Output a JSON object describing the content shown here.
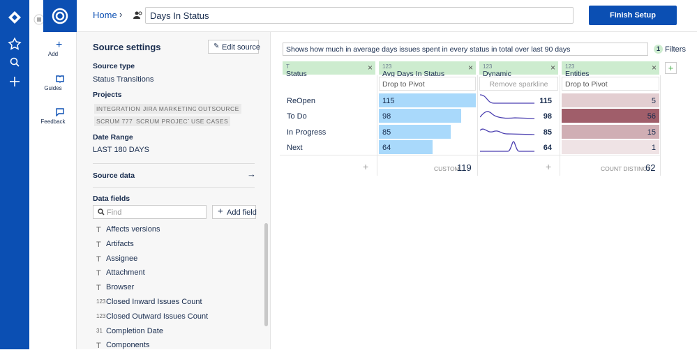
{
  "sidebar": {
    "add": "Add",
    "guides": "Guides",
    "feedback": "Feedback"
  },
  "header": {
    "breadcrumb": "Home",
    "title": "Days In Status",
    "button": "Finish Setup"
  },
  "source_settings": {
    "title": "Source settings",
    "edit": "Edit source",
    "source_type_label": "Source type",
    "source_type": "Status Transitions",
    "projects_label": "Projects",
    "projects": [
      "INTEGRATION",
      "JIRA MARKETING",
      "OUTSOURCE",
      "SCRUM 777",
      "SCRUM PROJECT",
      "USE CASES"
    ],
    "date_range_label": "Date Range",
    "date_range": "LAST 180 DAYS",
    "source_data": "Source data",
    "data_fields_label": "Data fields",
    "find_placeholder": "Find",
    "add_field": "Add field",
    "fields": [
      {
        "icon": "T",
        "name": "Affects versions"
      },
      {
        "icon": "T",
        "name": "Artifacts"
      },
      {
        "icon": "T",
        "name": "Assignee"
      },
      {
        "icon": "T",
        "name": "Attachment"
      },
      {
        "icon": "T",
        "name": "Browser"
      },
      {
        "icon": "123",
        "name": "Closed Inward Issues Count"
      },
      {
        "icon": "123",
        "name": "Closed Outward Issues Count"
      },
      {
        "icon": "31",
        "name": "Completion Date"
      },
      {
        "icon": "T",
        "name": "Components"
      }
    ]
  },
  "report": {
    "description": "Shows how much in average days issues spent in every status in total over last 90 days",
    "filters_count": "1",
    "filters_label": "Filters",
    "columns": [
      {
        "icon": "T",
        "name": "Status"
      },
      {
        "icon": "123",
        "name": "Avg Days In Status"
      },
      {
        "icon": "123",
        "name": "Dynamic"
      },
      {
        "icon": "123",
        "name": "Entities"
      }
    ],
    "drop_to_pivot": "Drop to Pivot",
    "remove_sparkline": "Remove sparkline",
    "rows": [
      {
        "status": "ReOpen",
        "avg": 115,
        "dynamic": 115,
        "entities": 5
      },
      {
        "status": "To Do",
        "avg": 98,
        "dynamic": 98,
        "entities": 56
      },
      {
        "status": "In Progress",
        "avg": 85,
        "dynamic": 85,
        "entities": 15
      },
      {
        "status": "Next",
        "avg": 64,
        "dynamic": 64,
        "entities": 1
      }
    ],
    "totals": {
      "avg_label": "CUSTOM",
      "avg": 119,
      "entities_label": "COUNT DISTINCT",
      "entities": 62
    }
  }
}
